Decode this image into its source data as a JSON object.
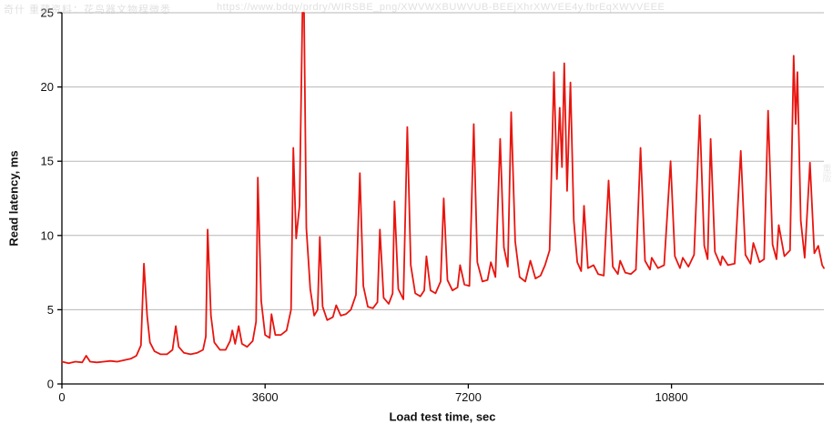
{
  "watermark": {
    "left": "奇什 重藏资料：花鸟器文物程微悉",
    "center": "https://www.bdqy/prdry/WIRSBE_png/XWVWXBUWVUB-BEEjXhrXWVEE4y.fbrEqXWVVEEE",
    "right": "重版"
  },
  "chart_data": {
    "type": "line",
    "title": "",
    "xlabel": "Load test time, sec",
    "ylabel": "Read latency, ms",
    "xlim": [
      0,
      13500
    ],
    "ylim": [
      0,
      25
    ],
    "x_ticks": [
      0,
      3600,
      7200,
      10800
    ],
    "y_ticks": [
      0,
      5,
      10,
      15,
      20,
      25
    ],
    "grid": "horizontal",
    "legend": "none",
    "line_color": "#e8150f",
    "axis_color": "#000000",
    "grid_color": "#b7b7b7",
    "series": [
      {
        "name": "Read latency",
        "points": [
          [
            0,
            1.5
          ],
          [
            120,
            1.4
          ],
          [
            240,
            1.5
          ],
          [
            360,
            1.45
          ],
          [
            430,
            1.9
          ],
          [
            500,
            1.5
          ],
          [
            620,
            1.45
          ],
          [
            740,
            1.5
          ],
          [
            860,
            1.55
          ],
          [
            980,
            1.5
          ],
          [
            1100,
            1.6
          ],
          [
            1220,
            1.7
          ],
          [
            1320,
            1.9
          ],
          [
            1400,
            2.6
          ],
          [
            1453,
            8.1
          ],
          [
            1510,
            4.6
          ],
          [
            1560,
            2.8
          ],
          [
            1640,
            2.2
          ],
          [
            1750,
            2.0
          ],
          [
            1860,
            2.0
          ],
          [
            1960,
            2.3
          ],
          [
            2018,
            3.9
          ],
          [
            2070,
            2.5
          ],
          [
            2160,
            2.1
          ],
          [
            2280,
            2.0
          ],
          [
            2400,
            2.1
          ],
          [
            2500,
            2.3
          ],
          [
            2550,
            3.2
          ],
          [
            2583,
            10.4
          ],
          [
            2640,
            4.6
          ],
          [
            2700,
            2.8
          ],
          [
            2800,
            2.3
          ],
          [
            2900,
            2.3
          ],
          [
            2980,
            2.9
          ],
          [
            3019,
            3.6
          ],
          [
            3070,
            2.7
          ],
          [
            3132,
            3.9
          ],
          [
            3190,
            2.7
          ],
          [
            3280,
            2.5
          ],
          [
            3380,
            2.9
          ],
          [
            3440,
            4.2
          ],
          [
            3471,
            13.9
          ],
          [
            3530,
            5.6
          ],
          [
            3600,
            3.3
          ],
          [
            3680,
            3.1
          ],
          [
            3713,
            4.7
          ],
          [
            3780,
            3.3
          ],
          [
            3880,
            3.3
          ],
          [
            3980,
            3.6
          ],
          [
            4060,
            5.0
          ],
          [
            4100,
            15.9
          ],
          [
            4150,
            9.8
          ],
          [
            4210,
            12.0
          ],
          [
            4262,
            25.0
          ],
          [
            4290,
            25.0
          ],
          [
            4330,
            10.5
          ],
          [
            4400,
            6.4
          ],
          [
            4470,
            4.6
          ],
          [
            4530,
            5.0
          ],
          [
            4569,
            9.9
          ],
          [
            4620,
            5.2
          ],
          [
            4700,
            4.3
          ],
          [
            4800,
            4.5
          ],
          [
            4860,
            5.3
          ],
          [
            4940,
            4.6
          ],
          [
            5030,
            4.7
          ],
          [
            5120,
            5.0
          ],
          [
            5210,
            6.0
          ],
          [
            5279,
            14.2
          ],
          [
            5340,
            6.6
          ],
          [
            5420,
            5.2
          ],
          [
            5510,
            5.1
          ],
          [
            5590,
            5.5
          ],
          [
            5634,
            10.4
          ],
          [
            5700,
            5.8
          ],
          [
            5790,
            5.4
          ],
          [
            5860,
            6.1
          ],
          [
            5892,
            12.3
          ],
          [
            5960,
            6.4
          ],
          [
            6050,
            5.7
          ],
          [
            6119,
            17.3
          ],
          [
            6180,
            8.0
          ],
          [
            6260,
            6.1
          ],
          [
            6350,
            5.9
          ],
          [
            6420,
            6.3
          ],
          [
            6458,
            8.6
          ],
          [
            6530,
            6.3
          ],
          [
            6620,
            6.1
          ],
          [
            6710,
            6.9
          ],
          [
            6765,
            12.5
          ],
          [
            6830,
            7.0
          ],
          [
            6920,
            6.3
          ],
          [
            7010,
            6.5
          ],
          [
            7055,
            8.0
          ],
          [
            7130,
            6.7
          ],
          [
            7220,
            6.6
          ],
          [
            7297,
            17.5
          ],
          [
            7360,
            8.2
          ],
          [
            7450,
            6.9
          ],
          [
            7540,
            7.0
          ],
          [
            7600,
            8.2
          ],
          [
            7680,
            7.2
          ],
          [
            7765,
            16.5
          ],
          [
            7830,
            9.2
          ],
          [
            7900,
            7.9
          ],
          [
            7959,
            18.3
          ],
          [
            8030,
            9.6
          ],
          [
            8110,
            7.2
          ],
          [
            8210,
            6.9
          ],
          [
            8300,
            8.3
          ],
          [
            8390,
            7.1
          ],
          [
            8480,
            7.3
          ],
          [
            8560,
            8.0
          ],
          [
            8640,
            9.0
          ],
          [
            8717,
            21.0
          ],
          [
            8770,
            13.8
          ],
          [
            8820,
            18.6
          ],
          [
            8860,
            14.6
          ],
          [
            8900,
            21.6
          ],
          [
            8950,
            13.0
          ],
          [
            9010,
            20.3
          ],
          [
            9070,
            11.0
          ],
          [
            9130,
            8.2
          ],
          [
            9200,
            7.6
          ],
          [
            9250,
            12.0
          ],
          [
            9320,
            7.8
          ],
          [
            9420,
            8.0
          ],
          [
            9500,
            7.4
          ],
          [
            9600,
            7.3
          ],
          [
            9686,
            13.7
          ],
          [
            9760,
            7.9
          ],
          [
            9850,
            7.4
          ],
          [
            9890,
            8.3
          ],
          [
            9980,
            7.5
          ],
          [
            10080,
            7.4
          ],
          [
            10170,
            7.7
          ],
          [
            10251,
            15.9
          ],
          [
            10330,
            8.3
          ],
          [
            10420,
            7.7
          ],
          [
            10450,
            8.5
          ],
          [
            10560,
            7.8
          ],
          [
            10670,
            8.0
          ],
          [
            10784,
            15.0
          ],
          [
            10860,
            8.6
          ],
          [
            10950,
            7.8
          ],
          [
            11000,
            8.5
          ],
          [
            11100,
            7.9
          ],
          [
            11200,
            8.7
          ],
          [
            11300,
            18.1
          ],
          [
            11380,
            9.3
          ],
          [
            11440,
            8.4
          ],
          [
            11494,
            16.5
          ],
          [
            11570,
            8.9
          ],
          [
            11670,
            8.0
          ],
          [
            11700,
            8.6
          ],
          [
            11800,
            8.0
          ],
          [
            11920,
            8.1
          ],
          [
            12027,
            15.7
          ],
          [
            12110,
            8.7
          ],
          [
            12200,
            8.1
          ],
          [
            12250,
            9.5
          ],
          [
            12360,
            8.2
          ],
          [
            12440,
            8.4
          ],
          [
            12512,
            18.4
          ],
          [
            12590,
            9.4
          ],
          [
            12660,
            8.4
          ],
          [
            12700,
            10.7
          ],
          [
            12800,
            8.6
          ],
          [
            12900,
            9.0
          ],
          [
            12964,
            22.1
          ],
          [
            13000,
            17.5
          ],
          [
            13030,
            21.0
          ],
          [
            13090,
            11.0
          ],
          [
            13160,
            8.5
          ],
          [
            13254,
            14.9
          ],
          [
            13330,
            8.8
          ],
          [
            13400,
            9.3
          ],
          [
            13470,
            8.0
          ],
          [
            13500,
            7.8
          ]
        ]
      }
    ]
  }
}
